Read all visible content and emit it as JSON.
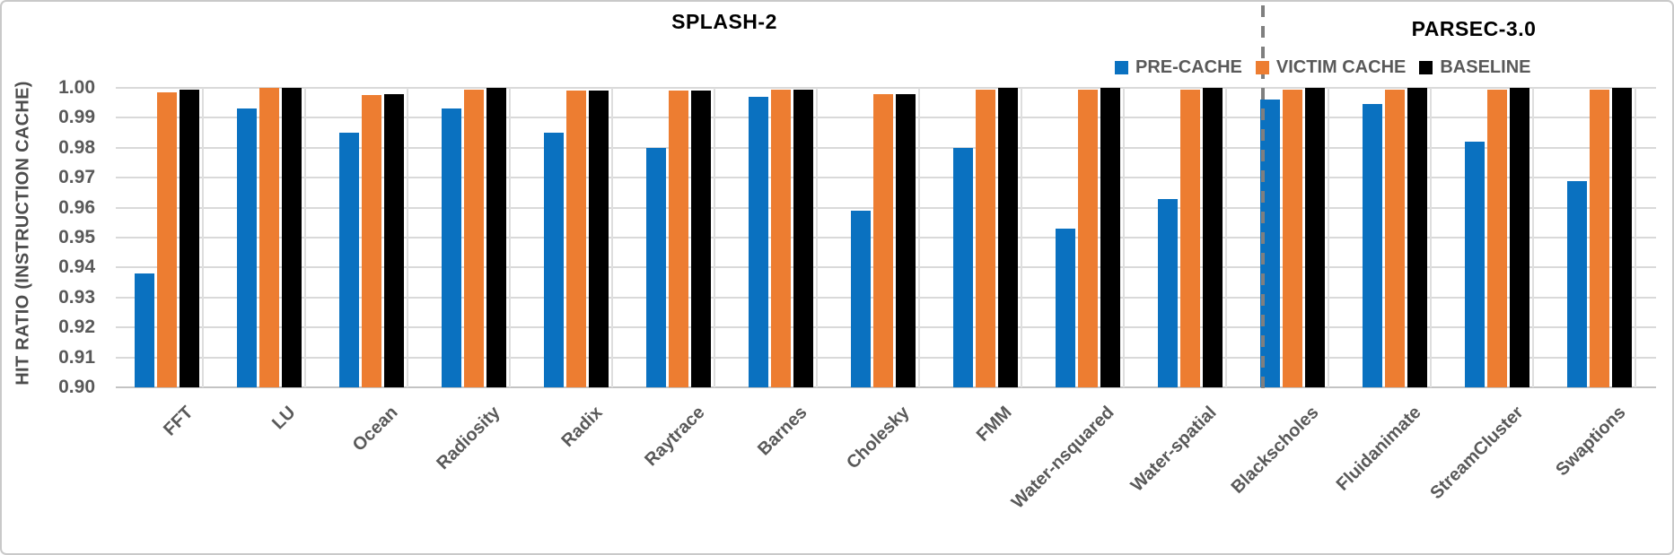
{
  "chart_data": {
    "type": "bar",
    "ylabel": "HIT RATIO (INSTRUCTION CACHE)",
    "ylim": [
      0.9,
      1.0
    ],
    "ytick_step": 0.01,
    "yticks": [
      "1.00",
      "0.99",
      "0.98",
      "0.97",
      "0.96",
      "0.95",
      "0.94",
      "0.93",
      "0.92",
      "0.91",
      "0.90"
    ],
    "grid": true,
    "legend_position": "top-right-inside",
    "sections": [
      {
        "label": "SPLASH-2",
        "categories": [
          "FFT",
          "LU",
          "Ocean",
          "Radiosity",
          "Radix",
          "Raytrace",
          "Barnes",
          "Cholesky",
          "FMM",
          "Water-nsquared",
          "Water-spatial"
        ]
      },
      {
        "label": "PARSEC-3.0",
        "categories": [
          "Blackscholes",
          "Fluidanimate",
          "StreamCluster",
          "Swaptions"
        ]
      }
    ],
    "categories": [
      "FFT",
      "LU",
      "Ocean",
      "Radiosity",
      "Radix",
      "Raytrace",
      "Barnes",
      "Cholesky",
      "FMM",
      "Water-nsquared",
      "Water-spatial",
      "Blackscholes",
      "Fluidanimate",
      "StreamCluster",
      "Swaptions"
    ],
    "series": [
      {
        "name": "PRE-CACHE",
        "color": "#0A71C0",
        "values": [
          0.938,
          0.993,
          0.985,
          0.993,
          0.985,
          0.98,
          0.997,
          0.959,
          0.98,
          0.953,
          0.963,
          0.996,
          0.9945,
          0.982,
          0.969
        ]
      },
      {
        "name": "VICTIM CACHE",
        "color": "#ED7D31",
        "values": [
          0.9985,
          1.0,
          0.9975,
          0.9995,
          0.999,
          0.999,
          0.9995,
          0.998,
          0.9995,
          0.9995,
          0.9995,
          0.9995,
          0.9995,
          0.9995,
          0.9995
        ]
      },
      {
        "name": "BASELINE",
        "color": "#000000",
        "values": [
          0.9995,
          1.0,
          0.998,
          1.0,
          0.999,
          0.999,
          0.9995,
          0.998,
          1.0,
          1.0,
          1.0,
          1.0,
          1.0,
          1.0,
          1.0
        ]
      }
    ],
    "separator": {
      "after_category": "Water-spatial",
      "style": "dashed",
      "color": "#7f7f7f"
    }
  },
  "colors": {
    "grid": "#d9d9d9",
    "axis_text": "#595959",
    "title_text": "#000000",
    "frame_border": "#c9c9c9"
  }
}
